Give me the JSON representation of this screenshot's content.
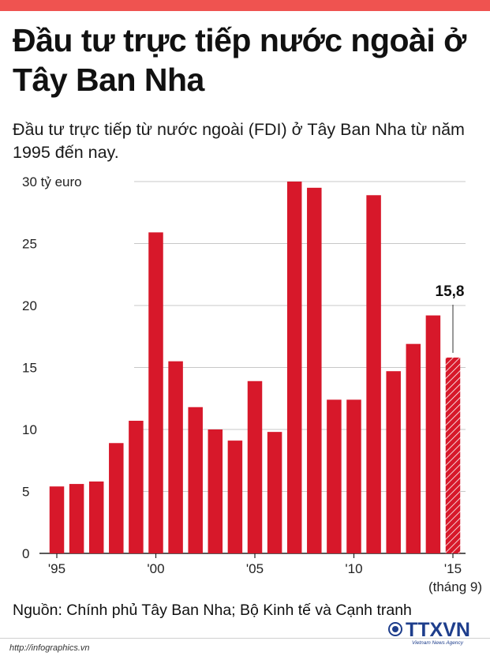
{
  "header": {
    "title": "Đầu tư trực tiếp nước ngoài ở Tây Ban Nha",
    "subtitle": "Đầu tư trực tiếp từ nước ngoài (FDI) ở Tây Ban Nha từ năm 1995 đến nay."
  },
  "chart_data": {
    "type": "bar",
    "title": "",
    "ylabel": "tỷ euro",
    "xlabel": "",
    "ylim": [
      0,
      30
    ],
    "y_ticks": [
      "0",
      "5",
      "10",
      "15",
      "20",
      "25",
      "30 tỷ euro"
    ],
    "y_tick_values": [
      0,
      5,
      10,
      15,
      20,
      25,
      30
    ],
    "x_tick_labels": [
      "'95",
      "'00",
      "'05",
      "'10",
      "'15"
    ],
    "x_tick_note": "(tháng 9)",
    "categories": [
      "1995",
      "1996",
      "1997",
      "1998",
      "1999",
      "2000",
      "2001",
      "2002",
      "2003",
      "2004",
      "2005",
      "2006",
      "2007",
      "2008",
      "2009",
      "2010",
      "2011",
      "2012",
      "2013",
      "2014",
      "2015"
    ],
    "values": [
      5.4,
      5.6,
      5.8,
      8.9,
      10.7,
      25.9,
      15.5,
      11.8,
      10.0,
      9.1,
      13.9,
      9.8,
      30.0,
      29.5,
      12.4,
      12.4,
      28.9,
      14.7,
      16.9,
      19.2,
      15.8
    ],
    "highlight": {
      "index": 20,
      "label": "15,8",
      "pattern": "hatched"
    },
    "grid": true,
    "colors": {
      "bar": "#d7182a",
      "grid": "#c8c8c8",
      "axis": "#222222"
    }
  },
  "footer": {
    "source": "Nguồn: Chính phủ Tây Ban Nha; Bộ Kinh tế và Cạnh tranh",
    "url": "http://infographics.vn",
    "logo_name": "TTXVN",
    "logo_sub": "Vietnam News Agency",
    "logo_icon": "ttxvn-emblem-icon"
  },
  "colors": {
    "top_bar": "#ef5350",
    "logo": "#1e3e8c"
  }
}
